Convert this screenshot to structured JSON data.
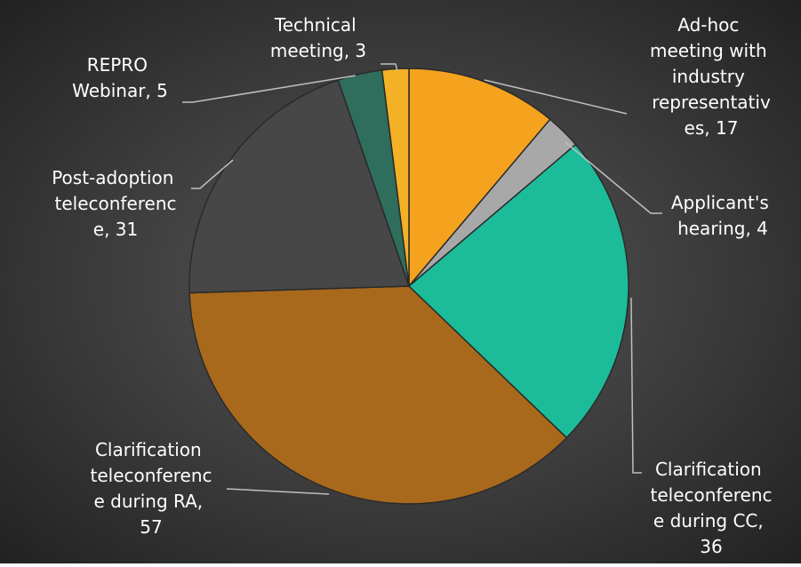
{
  "chart_data": {
    "type": "pie",
    "values": [
      17,
      4,
      36,
      57,
      31,
      5,
      3
    ],
    "value_labels": [
      "Ad-hoc meeting with industry representatives, 17",
      "Applicant's hearing, 4",
      "Clarification teleconference during CC, 36",
      "Clarification teleconference during RA, 57",
      "Post-adoption teleconference, 31",
      "REPRO Webinar, 5",
      "Technical meeting, 3"
    ],
    "colors": [
      "#f5a21f",
      "#a8a8a8",
      "#1cbc9a",
      "#a8691c",
      "#474747",
      "#2f6e5c",
      "#f4b125"
    ]
  }
}
